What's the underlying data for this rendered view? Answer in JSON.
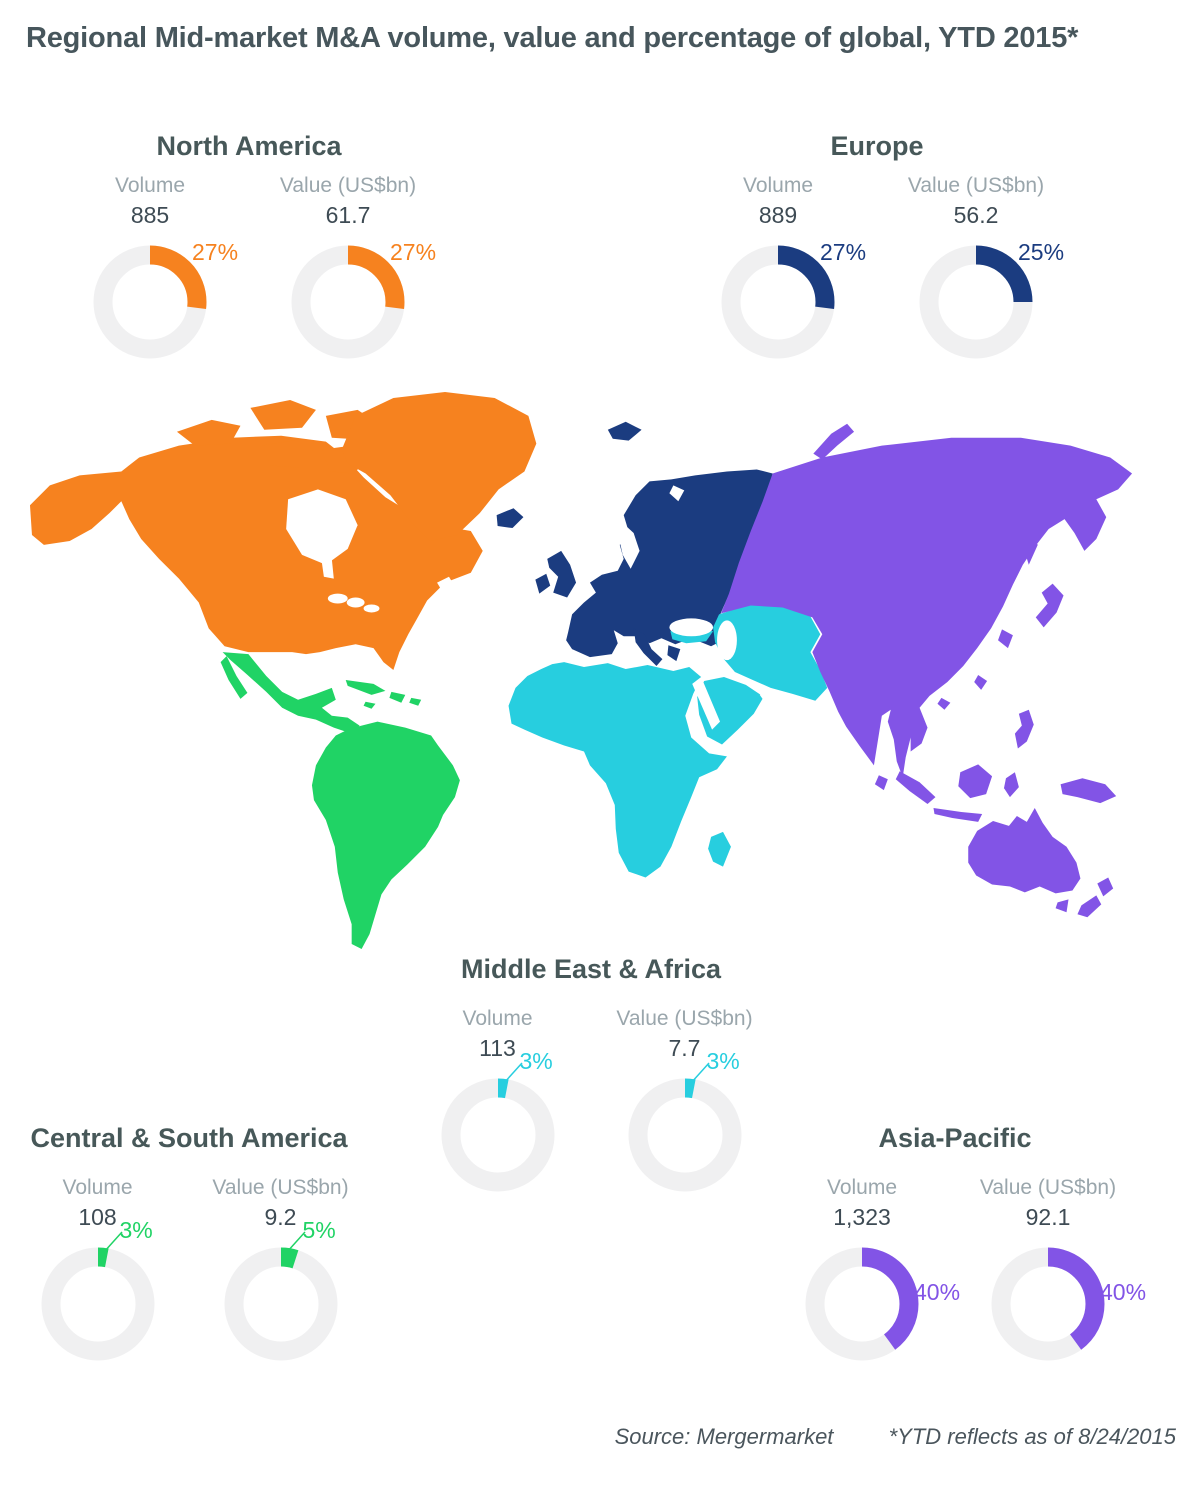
{
  "title": "Regional Mid-market M&A volume, value and percentage of global, YTD 2015*",
  "labels": {
    "volume": "Volume",
    "value": "Value (US$bn)"
  },
  "footer": {
    "source": "Source: Mergermarket",
    "note": "*YTD reflects as of 8/24/2015"
  },
  "colors": {
    "background": "#FFFFFF",
    "heading": "#475859",
    "stat_label": "#9AA6AC",
    "stat_number": "#3E4B54",
    "donut_track": "#F0F0F1",
    "footer_text": "#4A555C"
  },
  "regions": [
    {
      "id": "north-america",
      "name": "North America",
      "color": "#F6821F",
      "volume": "885",
      "volume_pct": 27,
      "value": "61.7",
      "value_pct": 27
    },
    {
      "id": "europe",
      "name": "Europe",
      "color": "#1B3C80",
      "volume": "889",
      "volume_pct": 27,
      "value": "56.2",
      "value_pct": 25
    },
    {
      "id": "middle-east-africa",
      "name": "Middle East & Africa",
      "color": "#27CEDF",
      "volume": "113",
      "volume_pct": 3,
      "value": "7.7",
      "value_pct": 3
    },
    {
      "id": "central-south-america",
      "name": "Central & South America",
      "color": "#20D365",
      "volume": "108",
      "volume_pct": 3,
      "value": "9.2",
      "value_pct": 5
    },
    {
      "id": "asia-pacific",
      "name": "Asia-Pacific",
      "color": "#8254E6",
      "volume": "1,323",
      "volume_pct": 40,
      "value": "92.1",
      "value_pct": 40
    }
  ],
  "chart_data": [
    {
      "type": "pie",
      "region": "North America",
      "metric": "Volume",
      "total": 885,
      "share_pct": 27
    },
    {
      "type": "pie",
      "region": "North America",
      "metric": "Value (US$bn)",
      "total": 61.7,
      "share_pct": 27
    },
    {
      "type": "pie",
      "region": "Europe",
      "metric": "Volume",
      "total": 889,
      "share_pct": 27
    },
    {
      "type": "pie",
      "region": "Europe",
      "metric": "Value (US$bn)",
      "total": 56.2,
      "share_pct": 25
    },
    {
      "type": "pie",
      "region": "Middle East & Africa",
      "metric": "Volume",
      "total": 113,
      "share_pct": 3
    },
    {
      "type": "pie",
      "region": "Middle East & Africa",
      "metric": "Value (US$bn)",
      "total": 7.7,
      "share_pct": 3
    },
    {
      "type": "pie",
      "region": "Central & South America",
      "metric": "Volume",
      "total": 108,
      "share_pct": 3
    },
    {
      "type": "pie",
      "region": "Central & South America",
      "metric": "Value (US$bn)",
      "total": 9.2,
      "share_pct": 5
    },
    {
      "type": "pie",
      "region": "Asia-Pacific",
      "metric": "Volume",
      "total": 1323,
      "share_pct": 40
    },
    {
      "type": "pie",
      "region": "Asia-Pacific",
      "metric": "Value (US$bn)",
      "total": 92.1,
      "share_pct": 40
    }
  ]
}
